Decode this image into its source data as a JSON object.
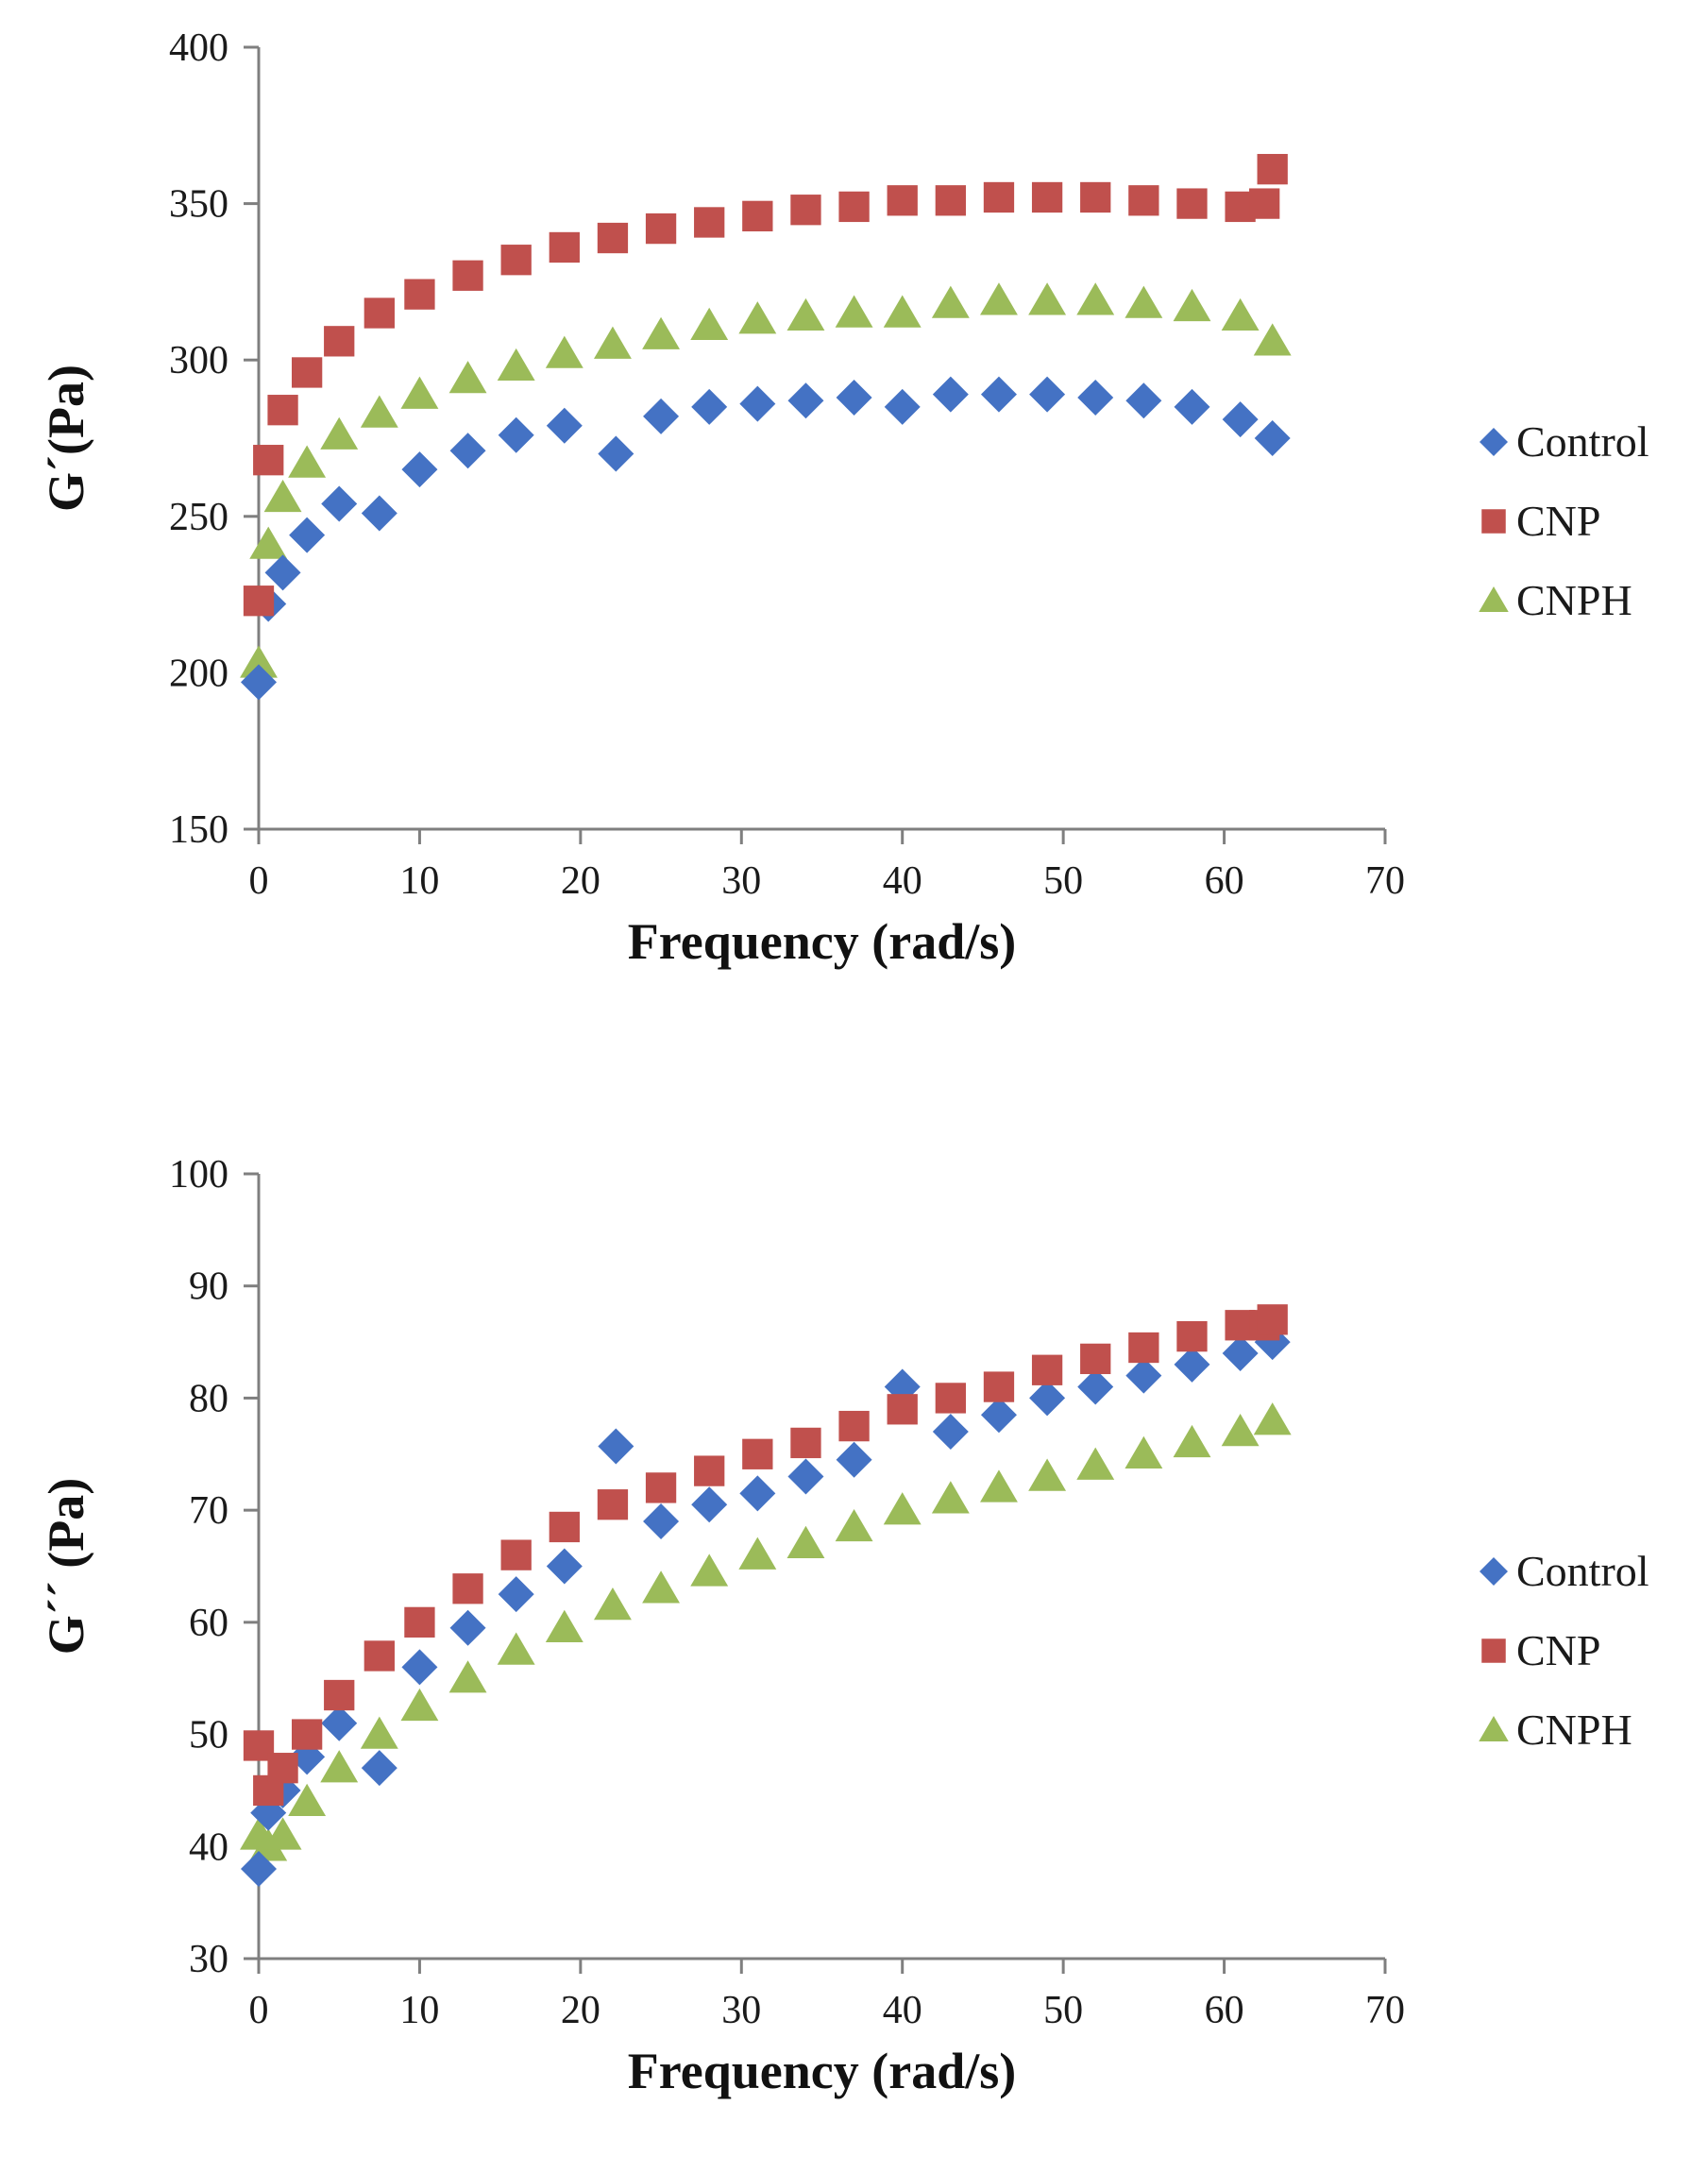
{
  "chart_data": [
    {
      "type": "scatter",
      "xlabel": "Frequency (rad/s)",
      "ylabel": "G´(Pa)",
      "xlim": [
        0,
        70
      ],
      "ylim": [
        150,
        400
      ],
      "xticks": [
        0,
        10,
        20,
        30,
        40,
        50,
        60,
        70
      ],
      "yticks": [
        150,
        200,
        250,
        300,
        350,
        400
      ],
      "legend_position": "right",
      "grid": false,
      "colors": {
        "Control": "#4472c4",
        "CNP": "#c0504d",
        "CNPH": "#9bbb59"
      },
      "series": [
        {
          "name": "Control",
          "marker": "diamond",
          "x": [
            0.0,
            0.6,
            1.5,
            3.0,
            5.0,
            7.5,
            10,
            13,
            16,
            19,
            22.2,
            25,
            28,
            31,
            34,
            37,
            40,
            43,
            46,
            49,
            52,
            55,
            58,
            61,
            63
          ],
          "y": [
            197,
            222,
            232,
            244,
            254,
            251,
            265,
            271,
            276,
            279,
            270,
            282,
            285,
            286,
            287,
            288,
            285,
            289,
            289,
            289,
            288,
            287,
            285,
            281,
            275
          ]
        },
        {
          "name": "CNP",
          "marker": "square",
          "x": [
            0.0,
            0.6,
            1.5,
            3.0,
            5.0,
            7.5,
            10,
            13,
            16,
            19,
            22,
            25,
            28,
            31,
            34,
            37,
            40,
            43,
            46,
            49,
            52,
            55,
            58,
            61,
            62.5,
            63
          ],
          "y": [
            223,
            268,
            284,
            296,
            306,
            315,
            321,
            327,
            332,
            336,
            339,
            342,
            344,
            346,
            348,
            349,
            351,
            351,
            352,
            352,
            352,
            351,
            350,
            349,
            350,
            361
          ]
        },
        {
          "name": "CNPH",
          "marker": "triangle",
          "x": [
            0.0,
            0.6,
            1.5,
            3.0,
            5.0,
            7.5,
            10,
            13,
            16,
            19,
            22,
            25,
            28,
            31,
            34,
            37,
            40,
            43,
            46,
            49,
            52,
            55,
            58,
            61,
            63
          ],
          "y": [
            203,
            241,
            256,
            267,
            276,
            283,
            289,
            294,
            298,
            302,
            305,
            308,
            311,
            313,
            314,
            315,
            315,
            318,
            319,
            319,
            319,
            318,
            317,
            314,
            306
          ]
        }
      ]
    },
    {
      "type": "scatter",
      "xlabel": "Frequency (rad/s)",
      "ylabel": "G´´ (Pa)",
      "xlim": [
        0,
        70
      ],
      "ylim": [
        30,
        100
      ],
      "xticks": [
        0,
        10,
        20,
        30,
        40,
        50,
        60,
        70
      ],
      "yticks": [
        30,
        40,
        50,
        60,
        70,
        80,
        90,
        100
      ],
      "legend_position": "right",
      "grid": false,
      "colors": {
        "Control": "#4472c4",
        "CNP": "#c0504d",
        "CNPH": "#9bbb59"
      },
      "series": [
        {
          "name": "Control",
          "marker": "diamond",
          "x": [
            0.0,
            0.6,
            1.5,
            3.0,
            5.0,
            7.5,
            10,
            13,
            16,
            19,
            22.2,
            25,
            28,
            31,
            34,
            37,
            40,
            43,
            46,
            49,
            52,
            55,
            58,
            61,
            63
          ],
          "y": [
            38,
            43,
            45,
            48,
            51,
            47,
            56,
            59.5,
            62.5,
            65,
            75.7,
            69,
            70.5,
            71.5,
            73,
            74.5,
            81,
            77,
            78.5,
            80,
            81,
            82,
            83,
            84,
            85
          ]
        },
        {
          "name": "CNP",
          "marker": "square",
          "x": [
            0.0,
            0.6,
            1.5,
            3.0,
            5.0,
            7.5,
            10,
            13,
            16,
            19,
            22,
            25,
            28,
            31,
            34,
            37,
            40,
            43,
            46,
            49,
            52,
            55,
            58,
            61,
            62.5,
            63
          ],
          "y": [
            49,
            45,
            47,
            50,
            53.5,
            57,
            60,
            63,
            66,
            68.5,
            70.5,
            72,
            73.5,
            75,
            76,
            77.5,
            79,
            80,
            81,
            82.5,
            83.5,
            84.5,
            85.5,
            86.5,
            86.5,
            87
          ]
        },
        {
          "name": "CNPH",
          "marker": "triangle",
          "x": [
            0.0,
            0.6,
            1.5,
            3.0,
            5.0,
            7.5,
            10,
            13,
            16,
            19,
            22,
            25,
            28,
            31,
            34,
            37,
            40,
            43,
            46,
            49,
            52,
            55,
            58,
            61,
            63
          ],
          "y": [
            41,
            40,
            41,
            44,
            47,
            50,
            52.5,
            55,
            57.5,
            59.5,
            61.5,
            63,
            64.5,
            66,
            67,
            68.5,
            70,
            71,
            72,
            73,
            74,
            75,
            76,
            77,
            78
          ]
        }
      ]
    }
  ]
}
